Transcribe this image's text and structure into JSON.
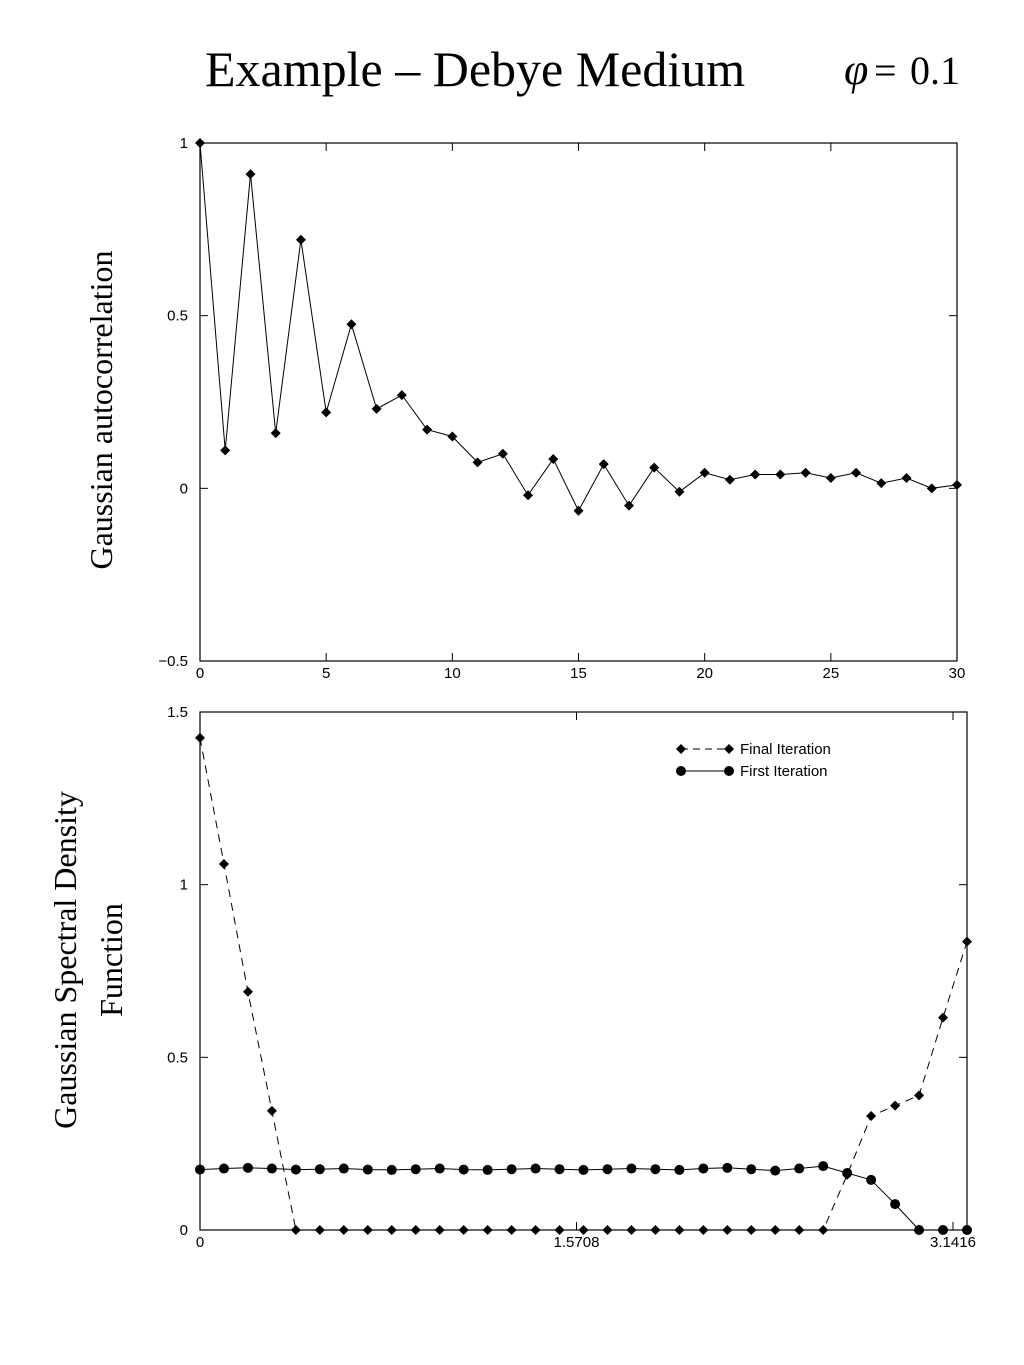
{
  "page": {
    "title": "Example – Debye Medium",
    "equation": {
      "symbol": "φ",
      "operator": "=",
      "value": "0.1"
    }
  },
  "chart_data": [
    {
      "type": "line",
      "title": "",
      "xlabel": "",
      "ylabel": "Gaussian autocorrelation",
      "xlim": [
        0,
        30
      ],
      "ylim": [
        -0.5,
        1
      ],
      "xticks": [
        0,
        5,
        10,
        15,
        20,
        25,
        30
      ],
      "xtick_labels": [
        "0",
        "5",
        "10",
        "15",
        "20",
        "25",
        "30"
      ],
      "yticks": [
        -0.5,
        0,
        0.5,
        1
      ],
      "ytick_labels": [
        "−0.5",
        "0",
        "0.5",
        "1"
      ],
      "grid": false,
      "series": [
        {
          "marker": "diamond",
          "line": "solid",
          "x": [
            0,
            1,
            2,
            3,
            4,
            5,
            6,
            7,
            8,
            9,
            10,
            11,
            12,
            13,
            14,
            15,
            16,
            17,
            18,
            19,
            20,
            21,
            22,
            23,
            24,
            25,
            26,
            27,
            28,
            29,
            30
          ],
          "y": [
            1.0,
            0.11,
            0.91,
            0.16,
            0.72,
            0.22,
            0.475,
            0.23,
            0.27,
            0.17,
            0.15,
            0.075,
            0.1,
            -0.02,
            0.085,
            -0.065,
            0.07,
            -0.05,
            0.06,
            -0.01,
            0.045,
            0.025,
            0.04,
            0.04,
            0.045,
            0.03,
            0.045,
            0.015,
            0.03,
            0.0,
            0.01
          ]
        }
      ]
    },
    {
      "type": "line",
      "title": "",
      "xlabel": "",
      "ylabel": "Gaussian Spectral Density Function",
      "ylabel_lines": [
        "Gaussian Spectral Density",
        "Function"
      ],
      "xlim": [
        0,
        3.2
      ],
      "ylim": [
        0,
        1.5
      ],
      "xticks": [
        0,
        1.5708,
        3.1416
      ],
      "xtick_labels": [
        "0",
        "1.5708",
        "3.1416"
      ],
      "yticks": [
        0,
        0.5,
        1,
        1.5
      ],
      "ytick_labels": [
        "0",
        "0.5",
        "1",
        "1.5"
      ],
      "grid": false,
      "legend_position": "top-right",
      "series": [
        {
          "name": "Final Iteration",
          "marker": "diamond",
          "line": "dashed",
          "x": [
            0,
            0.1,
            0.2,
            0.3,
            0.4,
            0.5,
            0.6,
            0.7,
            0.8,
            0.9,
            1.0,
            1.1,
            1.2,
            1.3,
            1.4,
            1.5,
            1.6,
            1.7,
            1.8,
            1.9,
            2.0,
            2.1,
            2.2,
            2.3,
            2.4,
            2.5,
            2.6,
            2.7,
            2.8,
            2.9,
            3.0,
            3.1,
            3.2
          ],
          "y": [
            1.425,
            1.06,
            0.69,
            0.345,
            0.0,
            0.0,
            0.0,
            0.0,
            0.0,
            0.0,
            0.0,
            0.0,
            0.0,
            0.0,
            0.0,
            0.0,
            0.0,
            0.0,
            0.0,
            0.0,
            0.0,
            0.0,
            0.0,
            0.0,
            0.0,
            0.0,
            0.0,
            0.16,
            0.33,
            0.36,
            0.39,
            0.615,
            0.835
          ]
        },
        {
          "name": "First Iteration",
          "marker": "circle",
          "line": "solid",
          "x": [
            0,
            0.1,
            0.2,
            0.3,
            0.4,
            0.5,
            0.6,
            0.7,
            0.8,
            0.9,
            1.0,
            1.1,
            1.2,
            1.3,
            1.4,
            1.5,
            1.6,
            1.7,
            1.8,
            1.9,
            2.0,
            2.1,
            2.2,
            2.3,
            2.4,
            2.5,
            2.6,
            2.7,
            2.8,
            2.9,
            3.0,
            3.1,
            3.2
          ],
          "y": [
            0.175,
            0.178,
            0.18,
            0.178,
            0.175,
            0.176,
            0.178,
            0.175,
            0.174,
            0.176,
            0.178,
            0.175,
            0.174,
            0.176,
            0.178,
            0.176,
            0.174,
            0.176,
            0.178,
            0.176,
            0.174,
            0.178,
            0.18,
            0.176,
            0.172,
            0.178,
            0.185,
            0.165,
            0.145,
            0.075,
            0.0,
            0.0,
            0.0
          ]
        }
      ]
    }
  ]
}
